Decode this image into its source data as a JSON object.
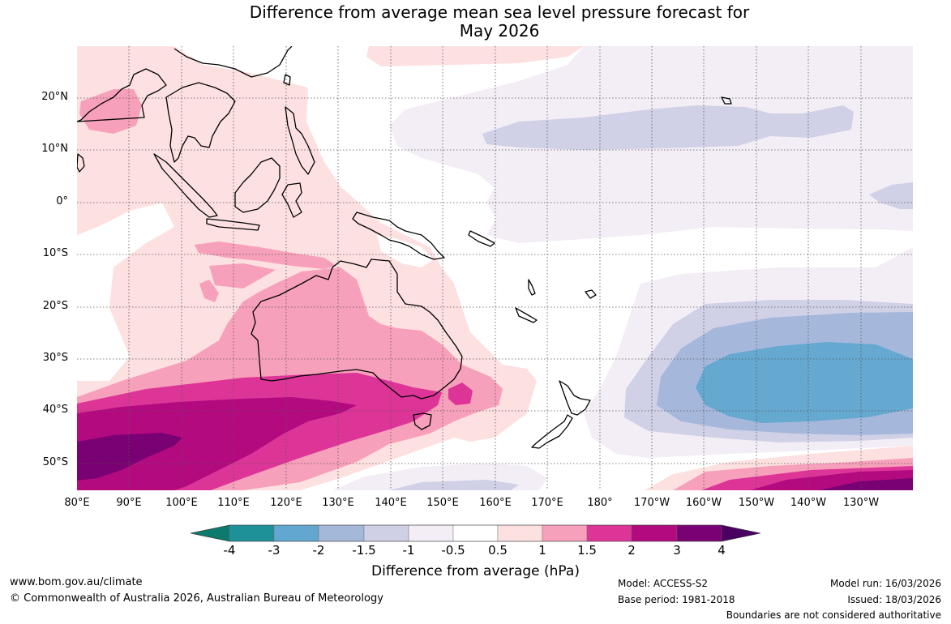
{
  "title": {
    "line1": "Difference from average mean sea level pressure forecast for",
    "line2": "May 2026"
  },
  "map": {
    "lat_labels": [
      "20°N",
      "10°N",
      "0°",
      "10°S",
      "20°S",
      "30°S",
      "40°S",
      "50°S"
    ],
    "lon_labels": [
      "80°E",
      "90°E",
      "100°E",
      "110°E",
      "120°E",
      "130°E",
      "140°E",
      "150°E",
      "160°E",
      "170°E",
      "180°",
      "170°W",
      "160°W",
      "150°W",
      "140°W",
      "130°W"
    ],
    "lat_range": [
      -55,
      30
    ],
    "lon_range": [
      80,
      240
    ],
    "colors": {
      "p05_1": "#fde0e0",
      "p1_15": "#f7a0bb",
      "p15_2": "#dd3597",
      "p2_3": "#b40a80",
      "p3_4": "#7a0174",
      "n05_1": "#f3edf6",
      "n1_15": "#d0d0e6",
      "n15_2": "#a5b8db",
      "n2_3": "#65a8d0",
      "coast": "#000000",
      "grid": "#555555"
    }
  },
  "colorbar": {
    "ticks": [
      "-4",
      "-3",
      "-2",
      "-1.5",
      "-1",
      "-0.5",
      "0.5",
      "1",
      "1.5",
      "2",
      "3",
      "4"
    ],
    "colors": [
      "#0c7a6d",
      "#1e9198",
      "#62a7d0",
      "#a4b8da",
      "#cfcfe6",
      "#f3edf6",
      "#ffffff",
      "#fde0e0",
      "#f7a0bb",
      "#dd3597",
      "#b40a80",
      "#7a0174",
      "#4a0060"
    ],
    "title": "Difference from average (hPa)"
  },
  "footer": {
    "url": "www.bom.gov.au/climate",
    "copyright": "© Commonwealth of Australia 2026, Australian Bureau of Meteorology",
    "model": "Model: ACCESS-S2",
    "base_period": "Base period: 1981-2018",
    "model_run": "Model run: 16/03/2026",
    "issued": "Issued: 18/03/2026",
    "disclaimer": "Boundaries are not considered authoritative"
  }
}
